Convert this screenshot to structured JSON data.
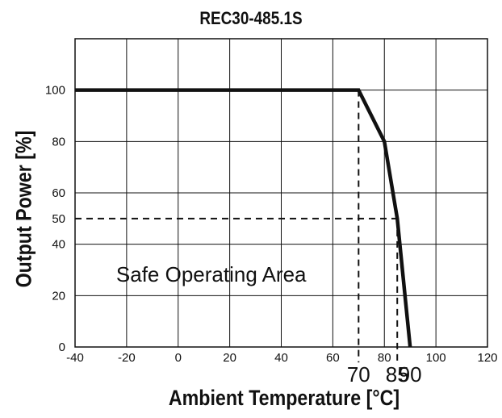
{
  "chart_data": {
    "type": "line",
    "title": "REC30-485.1S",
    "xlabel": "Ambient Temperature [°C]",
    "ylabel": "Output Power [%]",
    "xlim": [
      -40,
      120
    ],
    "ylim": [
      0,
      120
    ],
    "x_ticks": [
      -40,
      -20,
      0,
      20,
      40,
      60,
      80,
      100,
      120
    ],
    "y_ticks": [
      0,
      20,
      40,
      60,
      80,
      100
    ],
    "extra_y_ticks": [
      50
    ],
    "extra_x_ticks": [
      70,
      85,
      90
    ],
    "grid": true,
    "series": [
      {
        "x": [
          -40,
          70,
          80,
          85,
          90
        ],
        "y": [
          100,
          100,
          80,
          50,
          0
        ]
      }
    ],
    "reference_lines": [
      {
        "x": [
          70,
          70
        ],
        "y": [
          100,
          -6
        ]
      },
      {
        "x": [
          85,
          85
        ],
        "y": [
          50,
          -6
        ]
      },
      {
        "x": [
          -40,
          85
        ],
        "y": [
          50,
          50
        ]
      }
    ],
    "annotations": [
      {
        "text": "Safe Operating Area",
        "x": -25,
        "y": 28
      }
    ]
  }
}
